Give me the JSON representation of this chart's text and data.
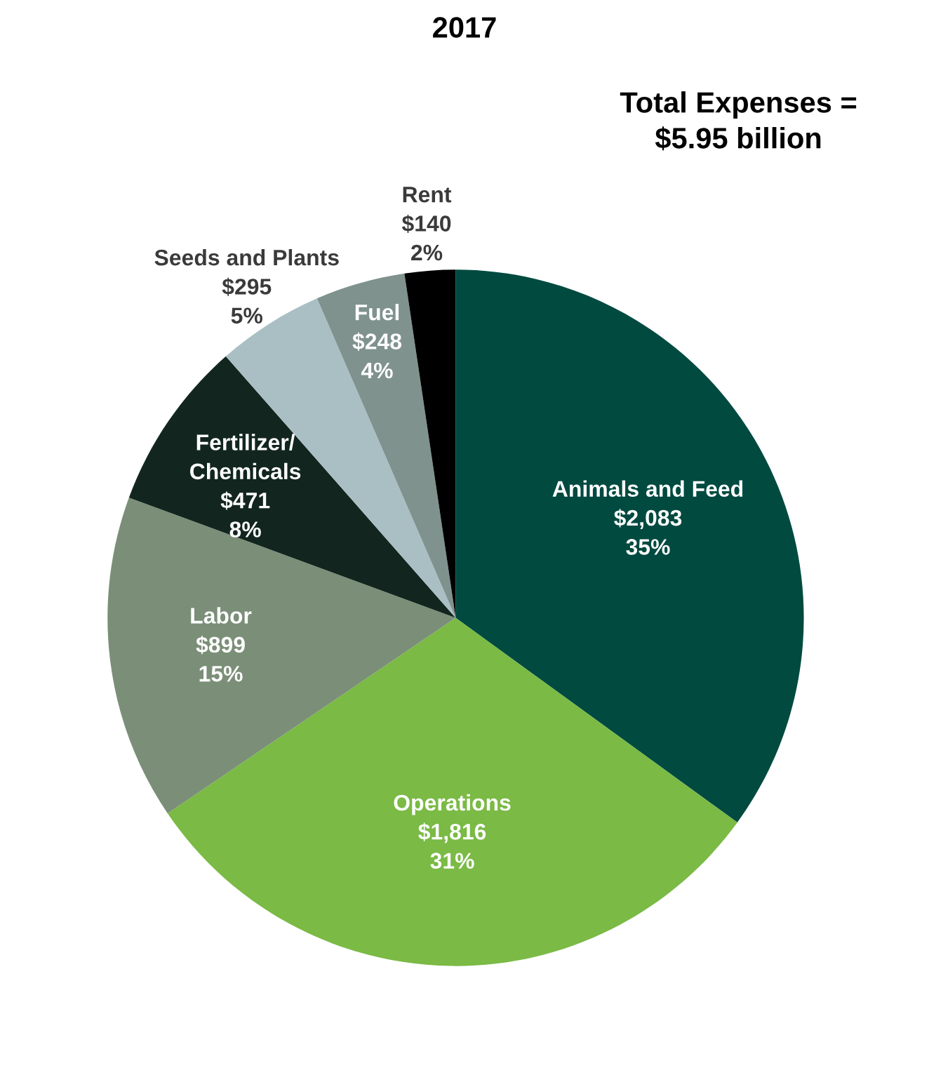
{
  "chart_data": {
    "type": "pie",
    "title": "2017",
    "categories": [
      "Animals and Feed",
      "Operations",
      "Labor",
      "Fertilizer/\nChemicals",
      "Seeds and Plants",
      "Fuel",
      "Rent"
    ],
    "values": [
      2083,
      1816,
      899,
      471,
      295,
      248,
      140
    ],
    "value_labels": [
      "$2,083\n35%",
      "$1,816\n31%",
      "$899\n15%",
      "$471\n8%",
      "$295\n5%",
      "$248\n4%",
      "$140\n2%"
    ],
    "colors": [
      "#004a40",
      "#7aba45",
      "#7b8f78",
      "#12261f",
      "#a9bfc4",
      "#7f928e",
      "#000000"
    ],
    "annotations": [
      "Total Expenses =\n$5.95 billion"
    ]
  }
}
